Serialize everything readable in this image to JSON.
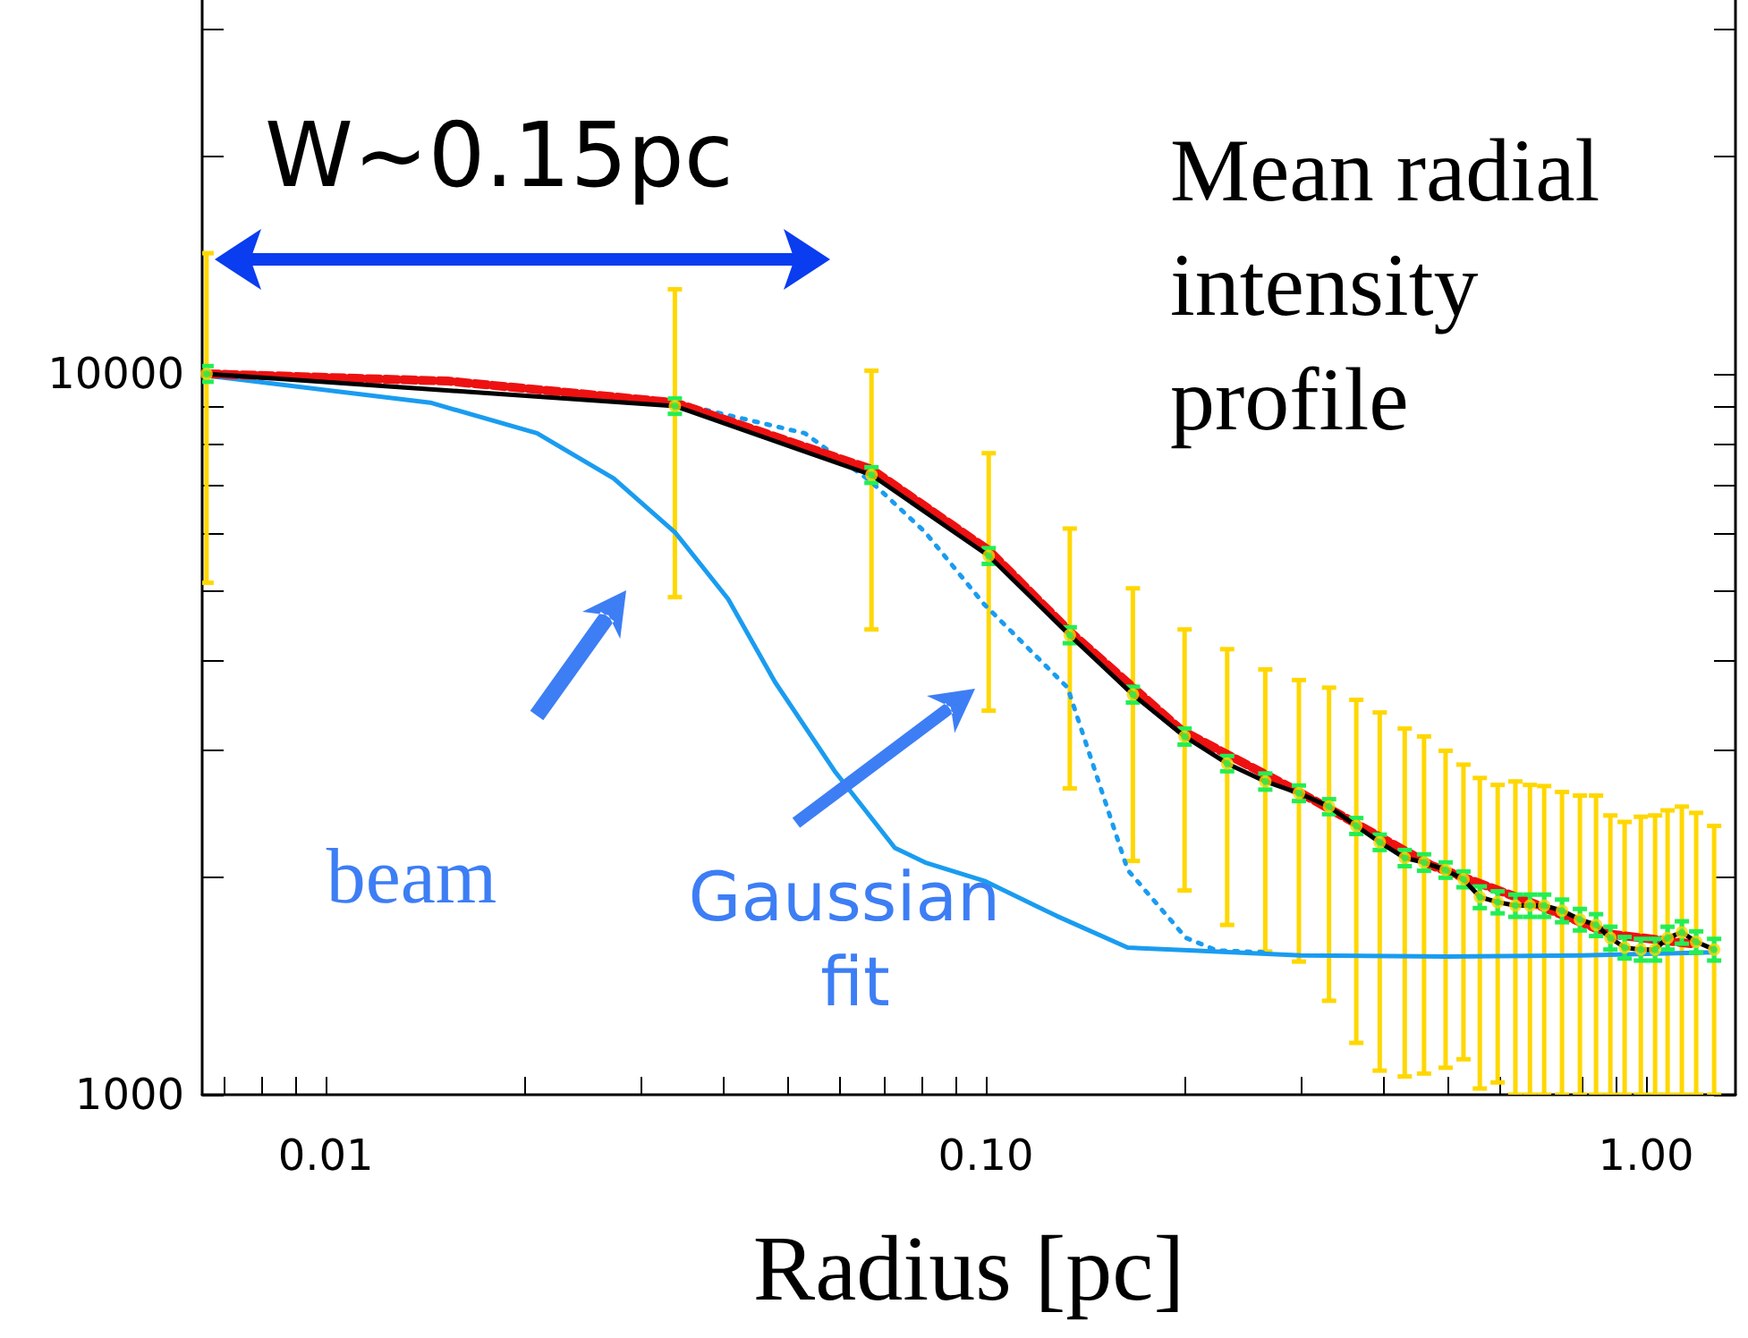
{
  "chart_data": {
    "type": "line",
    "title": "Mean radial intensity profile",
    "xlabel": "Radius [pc]",
    "log": "xy",
    "grid": false,
    "xlim": [
      0.0065,
      1.366
    ],
    "ylim": [
      1000,
      33000
    ],
    "xticks": [
      {
        "value": 0.007,
        "label": null
      },
      {
        "value": 0.008,
        "label": null
      },
      {
        "value": 0.009,
        "label": null
      },
      "0.01",
      {
        "value": 0.02,
        "label": null
      },
      {
        "value": 0.03,
        "label": null
      },
      {
        "value": 0.04,
        "label": null
      },
      {
        "value": 0.05,
        "label": null
      },
      {
        "value": 0.06,
        "label": null
      },
      {
        "value": 0.07,
        "label": null
      },
      {
        "value": 0.08,
        "label": null
      },
      {
        "value": 0.09,
        "label": null
      },
      {
        "value": 0.1,
        "label": "0.10"
      },
      {
        "value": 0.2,
        "label": null
      },
      {
        "value": 0.3,
        "label": null
      },
      {
        "value": 0.4,
        "label": null
      },
      {
        "value": 0.5,
        "label": null
      },
      {
        "value": 0.6,
        "label": null
      },
      {
        "value": 0.7,
        "label": null
      },
      {
        "value": 0.8,
        "label": null
      },
      {
        "value": 0.9,
        "label": null
      },
      {
        "value": 1,
        "label": "1.00"
      }
    ],
    "yticks": [
      1000,
      {
        "value": 2000,
        "label": null
      },
      {
        "value": 3000,
        "label": null
      },
      {
        "value": 4000,
        "label": null
      },
      {
        "value": 5000,
        "label": null
      },
      {
        "value": 6000,
        "label": null
      },
      {
        "value": 7000,
        "label": null
      },
      {
        "value": 8000,
        "label": null
      },
      {
        "value": 9000,
        "label": null
      },
      10000,
      {
        "value": 20000,
        "label": null
      },
      {
        "value": 30000,
        "label": null
      }
    ],
    "annotations": [
      "W~0.15pc",
      "beam",
      "Gaussian fit"
    ],
    "series": [
      {
        "type": "scatter",
        "marker": "circle",
        "color": "#ffd700",
        "x": [
          0.0066,
          0.0338,
          0.0671,
          0.101,
          0.134,
          0.167,
          0.2,
          0.232,
          0.265,
          0.298,
          0.331,
          0.364,
          0.395,
          0.431,
          0.461,
          0.497,
          0.529,
          0.56,
          0.596,
          0.634,
          0.667,
          0.701,
          0.746,
          0.794,
          0.84,
          0.883,
          0.928,
          0.982,
          1.032,
          1.078,
          1.133,
          1.191,
          1.268
        ],
        "values": [
          10000,
          9020,
          7240,
          5590,
          4340,
          3590,
          3140,
          2880,
          2720,
          2620,
          2510,
          2360,
          2240,
          2130,
          2100,
          2050,
          1990,
          1880,
          1850,
          1830,
          1830,
          1830,
          1800,
          1750,
          1720,
          1650,
          1600,
          1590,
          1590,
          1650,
          1680,
          1630,
          1590
        ],
        "errors": [
          [
            5130,
            14700
          ],
          [
            4900,
            13100
          ],
          [
            4420,
            10100
          ],
          [
            3410,
            7760
          ],
          [
            2660,
            6100
          ],
          [
            2110,
            5040
          ],
          [
            1920,
            4420
          ],
          [
            1720,
            4150
          ],
          [
            1580,
            3890
          ],
          [
            1530,
            3760
          ],
          [
            1350,
            3670
          ],
          [
            1180,
            3530
          ],
          [
            1080,
            3390
          ],
          [
            1060,
            3220
          ],
          [
            1070,
            3140
          ],
          [
            1090,
            3000
          ],
          [
            1120,
            2870
          ],
          [
            1020,
            2750
          ],
          [
            1040,
            2690
          ],
          [
            1000,
            2720
          ],
          [
            1000,
            2690
          ],
          [
            1000,
            2680
          ],
          [
            1000,
            2630
          ],
          [
            1000,
            2600
          ],
          [
            1000,
            2600
          ],
          [
            1000,
            2440
          ],
          [
            1000,
            2390
          ],
          [
            1000,
            2430
          ],
          [
            1000,
            2440
          ],
          [
            1000,
            2480
          ],
          [
            1000,
            2510
          ],
          [
            1000,
            2460
          ],
          [
            1000,
            2360
          ]
        ]
      },
      {
        "marker": "none",
        "color": "#1a9cf0",
        "line_style": "solid",
        "x": [
          0.0066,
          0.0144,
          0.0209,
          0.0273,
          0.0338,
          0.0407,
          0.0479,
          0.0592,
          0.0728,
          0.0809,
          0.0994,
          0.128,
          0.164,
          0.206,
          0.3,
          0.5,
          0.8,
          1.268
        ],
        "values": [
          9940,
          9120,
          8270,
          7160,
          6030,
          4870,
          3740,
          2800,
          2200,
          2100,
          1980,
          1770,
          1600,
          1585,
          1560,
          1555,
          1560,
          1576
        ]
      },
      {
        "marker": "none",
        "color": "#1a9cf0",
        "line_style": "dotted",
        "x": [
          0.0066,
          0.0153,
          0.0338,
          0.0532,
          0.0671,
          0.0809,
          0.0994,
          0.133,
          0.164,
          0.201,
          0.224,
          0.265
        ],
        "values": [
          10060,
          9770,
          9120,
          8270,
          7080,
          6030,
          4790,
          3670,
          2050,
          1650,
          1585,
          1576
        ]
      },
      {
        "marker": "none",
        "color": "#ee1111",
        "line_style": "dashed",
        "x": [
          0.0066,
          0.0153,
          0.0338,
          0.0671,
          0.101,
          0.134,
          0.198,
          0.298,
          0.473,
          0.688,
          0.883,
          1.169
        ],
        "values": [
          10000,
          9770,
          9120,
          7370,
          5690,
          4390,
          3200,
          2630,
          2080,
          1830,
          1670,
          1620
        ]
      },
      {
        "marker": "none",
        "color": "#000000",
        "line_style": "solid",
        "x": [
          0.0066,
          0.0338,
          0.0671,
          0.101,
          0.134,
          0.167,
          0.2,
          0.232,
          0.265,
          0.298,
          0.331,
          0.364,
          0.395,
          0.431,
          0.461,
          0.497,
          0.529,
          0.56,
          0.596,
          0.634,
          0.667,
          0.701,
          0.746,
          0.794,
          0.84,
          0.883,
          0.928,
          0.982,
          1.032,
          1.078,
          1.133,
          1.191,
          1.268
        ],
        "values": [
          10000,
          9020,
          7240,
          5590,
          4340,
          3590,
          3140,
          2880,
          2720,
          2620,
          2510,
          2360,
          2240,
          2130,
          2100,
          2050,
          1990,
          1880,
          1850,
          1830,
          1830,
          1830,
          1800,
          1750,
          1720,
          1650,
          1600,
          1590,
          1590,
          1650,
          1680,
          1630,
          1590
        ]
      },
      {
        "type": "scatter",
        "marker": "circle",
        "color": "#22ee55",
        "x": [
          0.0066,
          0.0338,
          0.0671,
          0.101,
          0.134,
          0.167,
          0.2,
          0.232,
          0.265,
          0.298,
          0.331,
          0.364,
          0.395,
          0.431,
          0.461,
          0.497,
          0.529,
          0.56,
          0.596,
          0.634,
          0.667,
          0.701,
          0.746,
          0.794,
          0.84,
          0.883,
          0.928,
          0.982,
          1.032,
          1.078,
          1.133,
          1.191,
          1.268
        ],
        "values": [
          10000,
          9020,
          7240,
          5590,
          4340,
          3590,
          3140,
          2880,
          2720,
          2620,
          2510,
          2360,
          2240,
          2130,
          2100,
          2050,
          1990,
          1880,
          1850,
          1830,
          1830,
          1830,
          1800,
          1750,
          1720,
          1650,
          1600,
          1590,
          1590,
          1650,
          1680,
          1630,
          1590
        ],
        "errors": [
          250,
          220,
          180,
          140,
          110,
          90,
          80,
          70,
          70,
          65,
          60,
          60,
          55,
          55,
          55,
          50,
          50,
          65,
          65,
          65,
          65,
          65,
          65,
          60,
          60,
          60,
          55,
          55,
          55,
          60,
          60,
          55,
          55
        ]
      }
    ]
  }
}
